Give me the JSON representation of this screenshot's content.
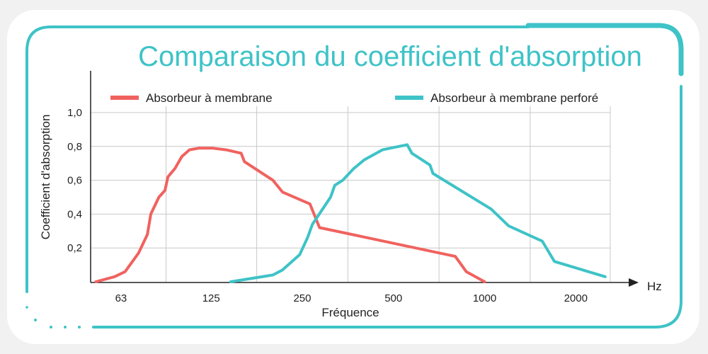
{
  "chart_data": {
    "type": "line",
    "title": "Comparaison du coefficient d'absorption",
    "xlabel": "Fréquence",
    "ylabel": "Coefficient d'absorption",
    "x_unit": "Hz",
    "x_scale": "log",
    "x_ticks": [
      63,
      125,
      250,
      500,
      1000,
      2000
    ],
    "x_tick_labels": [
      "63",
      "125",
      "250",
      "500",
      "1000",
      "2000"
    ],
    "xlim": [
      50,
      2600
    ],
    "y_ticks": [
      0.2,
      0.4,
      0.6,
      0.8,
      1.0
    ],
    "y_tick_labels": [
      "0,2",
      "0,4",
      "0,6",
      "0,8",
      "1,0"
    ],
    "ylim": [
      0.0,
      1.0
    ],
    "grid": true,
    "legend_position": "top",
    "series": [
      {
        "name": "Absorbeur à membrane",
        "color": "#f0625f",
        "points": [
          [
            52,
            0.0
          ],
          [
            60,
            0.03
          ],
          [
            65,
            0.06
          ],
          [
            72,
            0.17
          ],
          [
            77,
            0.28
          ],
          [
            79,
            0.4
          ],
          [
            84,
            0.5
          ],
          [
            88,
            0.54
          ],
          [
            90,
            0.62
          ],
          [
            95,
            0.67
          ],
          [
            100,
            0.74
          ],
          [
            106,
            0.78
          ],
          [
            114,
            0.79
          ],
          [
            126,
            0.79
          ],
          [
            140,
            0.78
          ],
          [
            157,
            0.76
          ],
          [
            161,
            0.71
          ],
          [
            200,
            0.6
          ],
          [
            215,
            0.53
          ],
          [
            265,
            0.46
          ],
          [
            285,
            0.32
          ],
          [
            800,
            0.15
          ],
          [
            870,
            0.06
          ],
          [
            1000,
            0.0
          ]
        ]
      },
      {
        "name": "Absorbeur à membrane perforé",
        "color": "#3ec3c7",
        "points": [
          [
            145,
            0.0
          ],
          [
            200,
            0.04
          ],
          [
            215,
            0.07
          ],
          [
            245,
            0.16
          ],
          [
            260,
            0.26
          ],
          [
            270,
            0.34
          ],
          [
            310,
            0.5
          ],
          [
            320,
            0.57
          ],
          [
            340,
            0.6
          ],
          [
            370,
            0.67
          ],
          [
            400,
            0.72
          ],
          [
            460,
            0.78
          ],
          [
            555,
            0.81
          ],
          [
            575,
            0.76
          ],
          [
            660,
            0.69
          ],
          [
            675,
            0.64
          ],
          [
            1050,
            0.43
          ],
          [
            1200,
            0.33
          ],
          [
            1550,
            0.24
          ],
          [
            1700,
            0.12
          ],
          [
            2500,
            0.03
          ]
        ]
      }
    ]
  },
  "theme": {
    "frame_color": "#3ec3c7",
    "grid_color": "#c8c8c8",
    "axis_color": "#222222"
  }
}
